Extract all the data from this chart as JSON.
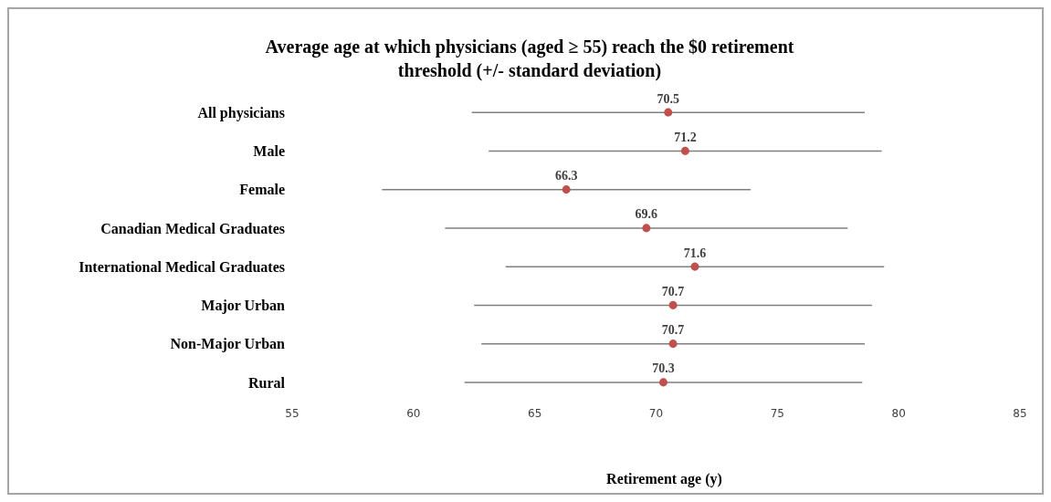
{
  "chart_data": {
    "type": "scatter",
    "orientation": "horizontal",
    "title": "Average age at which physicians (aged ≥ 55) reach the $0 retirement threshold (+/- standard deviation)",
    "xlabel": "Retirement age (y)",
    "categories": [
      "All physicians",
      "Male",
      "Female",
      "Canadian Medical Graduates",
      "International Medical Graduates",
      "Major Urban",
      "Non-Major Urban",
      "Rural"
    ],
    "values": [
      70.5,
      71.2,
      66.3,
      69.6,
      71.6,
      70.7,
      70.7,
      70.3
    ],
    "errors": [
      8.1,
      8.1,
      7.6,
      8.3,
      7.8,
      8.2,
      7.9,
      8.2
    ],
    "color": "#c0504d",
    "marker": "circle",
    "data_labels": true,
    "xlim": [
      55,
      85
    ],
    "xticks": [
      55,
      60,
      65,
      70,
      75,
      80,
      85
    ]
  }
}
